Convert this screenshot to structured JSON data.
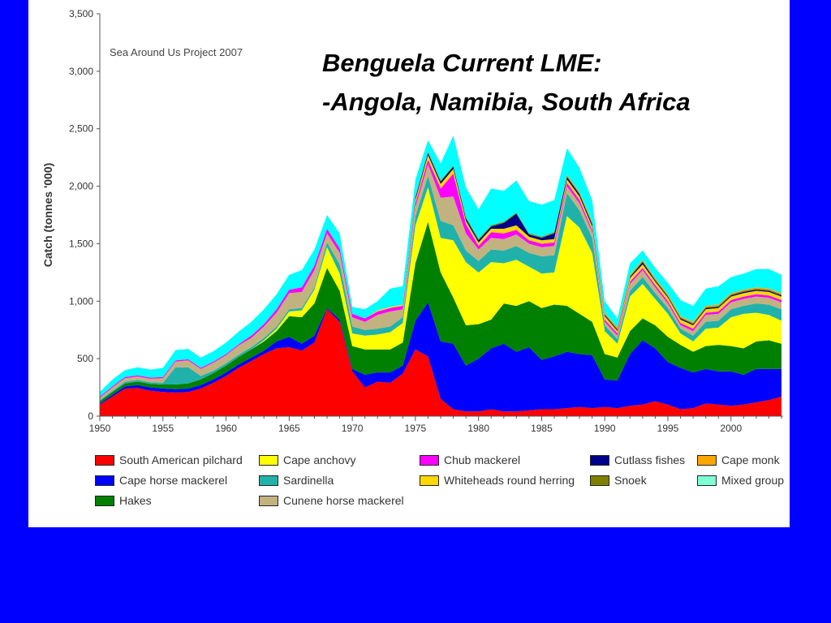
{
  "slide": {
    "title_line1": "Benguela Current LME:",
    "title_line2": "-Angola, Namibia, South Africa",
    "background": "#0000ff"
  },
  "chart_data": {
    "type": "area",
    "stacked": true,
    "source_note": "Sea Around Us Project 2007",
    "ylabel": "Catch (tonnes '000)",
    "xlabel": "",
    "xlim": [
      1950,
      2004
    ],
    "ylim": [
      0,
      3500
    ],
    "x_ticks": [
      "1950",
      "1955",
      "1960",
      "1965",
      "1970",
      "1975",
      "1980",
      "1985",
      "1990",
      "1995",
      "2000"
    ],
    "y_ticks": [
      "0",
      "500",
      "1,000",
      "1,500",
      "2,000",
      "2,500",
      "3,000",
      "3,500"
    ],
    "x": [
      1950,
      1951,
      1952,
      1953,
      1954,
      1955,
      1956,
      1957,
      1958,
      1959,
      1960,
      1961,
      1962,
      1963,
      1964,
      1965,
      1966,
      1967,
      1968,
      1969,
      1970,
      1971,
      1972,
      1973,
      1974,
      1975,
      1976,
      1977,
      1978,
      1979,
      1980,
      1981,
      1982,
      1983,
      1984,
      1985,
      1986,
      1987,
      1988,
      1989,
      1990,
      1991,
      1992,
      1993,
      1994,
      1995,
      1996,
      1997,
      1998,
      1999,
      2000,
      2001,
      2002,
      2003,
      2004
    ],
    "series": [
      {
        "name": "South American pilchard",
        "color": "#ff0000",
        "values": [
          100,
          170,
          240,
          245,
          220,
          210,
          205,
          210,
          240,
          290,
          350,
          420,
          480,
          540,
          590,
          600,
          570,
          640,
          930,
          820,
          390,
          250,
          300,
          290,
          370,
          580,
          520,
          150,
          60,
          40,
          40,
          60,
          40,
          40,
          50,
          60,
          60,
          70,
          80,
          70,
          80,
          70,
          90,
          100,
          130,
          100,
          60,
          70,
          110,
          100,
          90,
          100,
          120,
          140,
          170
        ]
      },
      {
        "name": "Cape horse mackerel",
        "color": "#0000ff",
        "values": [
          10,
          15,
          20,
          25,
          30,
          30,
          30,
          30,
          30,
          30,
          30,
          30,
          30,
          30,
          60,
          90,
          60,
          60,
          10,
          20,
          20,
          110,
          80,
          90,
          70,
          250,
          470,
          500,
          570,
          400,
          460,
          530,
          590,
          520,
          550,
          430,
          460,
          490,
          460,
          460,
          240,
          240,
          450,
          560,
          460,
          370,
          360,
          310,
          300,
          290,
          300,
          260,
          290,
          270,
          240
        ]
      },
      {
        "name": "Hakes",
        "color": "#008000",
        "values": [
          20,
          25,
          25,
          30,
          30,
          35,
          40,
          45,
          50,
          55,
          60,
          65,
          70,
          80,
          90,
          180,
          230,
          280,
          350,
          250,
          200,
          220,
          200,
          200,
          200,
          500,
          700,
          600,
          400,
          350,
          300,
          250,
          350,
          400,
          400,
          450,
          450,
          400,
          350,
          290,
          220,
          200,
          200,
          190,
          200,
          220,
          200,
          180,
          200,
          230,
          220,
          230,
          240,
          250,
          220
        ]
      },
      {
        "name": "Cape anchovy",
        "color": "#ffff00",
        "values": [
          0,
          0,
          0,
          0,
          0,
          0,
          0,
          0,
          0,
          0,
          0,
          0,
          0,
          10,
          20,
          40,
          60,
          120,
          180,
          150,
          110,
          120,
          130,
          150,
          170,
          330,
          300,
          300,
          500,
          550,
          450,
          500,
          350,
          400,
          300,
          300,
          280,
          780,
          750,
          600,
          200,
          120,
          300,
          300,
          230,
          200,
          100,
          90,
          150,
          150,
          250,
          300,
          250,
          220,
          200
        ]
      },
      {
        "name": "Sardinella",
        "color": "#20b2aa",
        "values": [
          10,
          10,
          15,
          15,
          15,
          15,
          150,
          140,
          30,
          20,
          20,
          20,
          20,
          20,
          20,
          20,
          20,
          20,
          40,
          80,
          60,
          50,
          50,
          50,
          50,
          80,
          100,
          150,
          130,
          100,
          100,
          110,
          110,
          120,
          120,
          150,
          150,
          200,
          150,
          130,
          50,
          40,
          50,
          60,
          50,
          50,
          40,
          50,
          60,
          60,
          70,
          70,
          80,
          90,
          100
        ]
      },
      {
        "name": "Cunene horse mackerel",
        "color": "#c2b280",
        "values": [
          20,
          30,
          30,
          30,
          30,
          40,
          50,
          60,
          60,
          70,
          70,
          80,
          80,
          100,
          120,
          140,
          140,
          150,
          80,
          100,
          80,
          70,
          120,
          130,
          70,
          80,
          100,
          200,
          250,
          150,
          100,
          100,
          100,
          100,
          80,
          80,
          80,
          60,
          60,
          50,
          30,
          30,
          60,
          60,
          50,
          40,
          30,
          40,
          60,
          60,
          60,
          60,
          60,
          60,
          60
        ]
      },
      {
        "name": "Chub mackerel",
        "color": "#ff00ff",
        "values": [
          10,
          10,
          10,
          10,
          10,
          10,
          10,
          10,
          10,
          10,
          10,
          10,
          20,
          20,
          30,
          30,
          40,
          40,
          40,
          40,
          30,
          30,
          30,
          30,
          30,
          30,
          40,
          80,
          200,
          80,
          30,
          50,
          50,
          40,
          30,
          30,
          30,
          30,
          30,
          20,
          20,
          20,
          20,
          20,
          20,
          20,
          20,
          20,
          20,
          20,
          20,
          20,
          20,
          20,
          20
        ]
      },
      {
        "name": "Whiteheads round herring",
        "color": "#ffd700",
        "values": [
          0,
          0,
          0,
          0,
          0,
          0,
          0,
          0,
          0,
          0,
          0,
          0,
          0,
          0,
          0,
          0,
          0,
          0,
          0,
          0,
          0,
          0,
          10,
          10,
          10,
          30,
          40,
          40,
          40,
          30,
          30,
          30,
          40,
          40,
          30,
          30,
          30,
          30,
          30,
          30,
          30,
          20,
          30,
          30,
          30,
          30,
          30,
          30,
          30,
          30,
          30,
          30,
          30,
          30,
          30
        ]
      },
      {
        "name": "Cutlass fishes",
        "color": "#00008b",
        "values": [
          0,
          0,
          0,
          0,
          0,
          0,
          0,
          0,
          0,
          0,
          0,
          0,
          0,
          0,
          0,
          0,
          0,
          0,
          0,
          0,
          0,
          0,
          0,
          0,
          0,
          20,
          20,
          20,
          20,
          20,
          20,
          20,
          50,
          100,
          20,
          20,
          50,
          20,
          20,
          20,
          10,
          10,
          10,
          20,
          10,
          10,
          10,
          10,
          10,
          10,
          10,
          10,
          10,
          10,
          10
        ]
      },
      {
        "name": "Snoek",
        "color": "#808000",
        "values": [
          0,
          0,
          0,
          0,
          0,
          0,
          0,
          0,
          0,
          0,
          0,
          0,
          0,
          0,
          0,
          0,
          0,
          0,
          0,
          0,
          0,
          0,
          0,
          0,
          0,
          10,
          10,
          10,
          10,
          10,
          10,
          10,
          10,
          10,
          10,
          10,
          10,
          10,
          10,
          10,
          10,
          10,
          10,
          10,
          10,
          10,
          10,
          10,
          10,
          10,
          10,
          10,
          10,
          10,
          10
        ]
      },
      {
        "name": "Cape monk",
        "color": "#ffa500",
        "values": [
          0,
          0,
          0,
          0,
          0,
          0,
          0,
          0,
          0,
          0,
          0,
          0,
          0,
          0,
          0,
          0,
          0,
          0,
          0,
          0,
          0,
          0,
          0,
          0,
          0,
          0,
          0,
          0,
          0,
          0,
          0,
          0,
          0,
          0,
          0,
          0,
          0,
          10,
          10,
          10,
          10,
          10,
          10,
          10,
          10,
          10,
          10,
          10,
          10,
          10,
          10,
          10,
          10,
          10,
          10
        ]
      },
      {
        "name": "Mixed group",
        "color": "#7fffd4",
        "values": [
          0,
          0,
          0,
          0,
          0,
          0,
          0,
          0,
          0,
          0,
          0,
          0,
          0,
          0,
          0,
          0,
          0,
          0,
          0,
          0,
          0,
          0,
          0,
          0,
          0,
          0,
          0,
          0,
          0,
          0,
          0,
          0,
          0,
          0,
          0,
          0,
          0,
          0,
          0,
          0,
          0,
          0,
          0,
          0,
          0,
          0,
          0,
          0,
          0,
          0,
          0,
          0,
          0,
          0,
          0
        ]
      },
      {
        "name": "",
        "color": "#00ffff",
        "values": [
          40,
          60,
          60,
          70,
          70,
          80,
          90,
          90,
          90,
          90,
          100,
          110,
          120,
          130,
          130,
          130,
          150,
          140,
          120,
          130,
          60,
          80,
          80,
          160,
          160,
          150,
          100,
          150,
          260,
          260,
          260,
          320,
          270,
          280,
          280,
          280,
          280,
          230,
          210,
          190,
          100,
          80,
          100,
          80,
          90,
          100,
          140,
          140,
          150,
          160,
          140,
          140,
          160,
          170,
          160
        ]
      }
    ],
    "legend": [
      {
        "label": "South American pilchard",
        "color": "#ff0000"
      },
      {
        "label": "Cape anchovy",
        "color": "#ffff00"
      },
      {
        "label": "Chub mackerel",
        "color": "#ff00ff"
      },
      {
        "label": "Cutlass fishes",
        "color": "#00008b"
      },
      {
        "label": "Cape monk",
        "color": "#ffa500"
      },
      {
        "label": "Cape horse mackerel",
        "color": "#0000ff"
      },
      {
        "label": "Sardinella",
        "color": "#20b2aa"
      },
      {
        "label": "Whiteheads round herring",
        "color": "#ffd700"
      },
      {
        "label": "Snoek",
        "color": "#808000"
      },
      {
        "label": "Mixed group",
        "color": "#7fffd4"
      },
      {
        "label": "Hakes",
        "color": "#008000"
      },
      {
        "label": "Cunene horse mackerel",
        "color": "#c2b280"
      }
    ],
    "legend_placement": "bottom",
    "grid": false
  }
}
